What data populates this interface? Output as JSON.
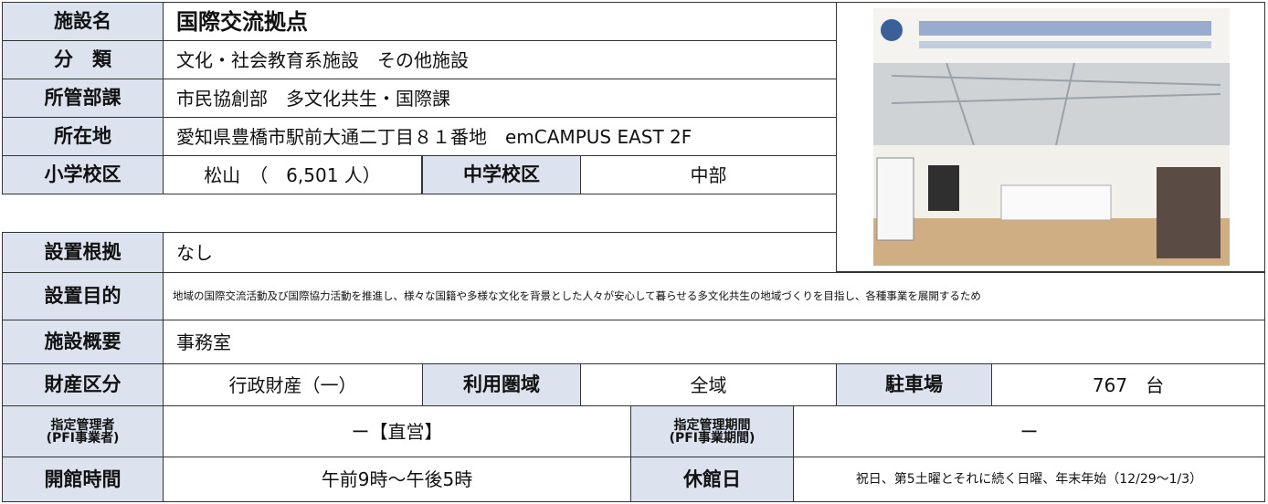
{
  "table": {
    "rows": [
      [
        "施設名",
        "国際交流拠点"
      ],
      [
        "分　類",
        "文化・社会教育系施設　その他施設"
      ],
      [
        "所管部課",
        "市民協創部　多文化共生・国際課"
      ],
      [
        "所在地",
        "愛知県豊橋市駅前大通二丁目８１番地　emCAMPUS EAST 2F"
      ],
      [
        "小学校区",
        "松山　（　6,501 人）",
        "中学校区",
        "中部"
      ],
      [
        "設置根拠",
        "なし"
      ],
      [
        "設置目的",
        "地域の国際交流活動及び国際協力活動を推進し、様々な国籍や多様な文化を背景とした人々が安心して暮らせる多文化共生の地域づくりを目指し、各種事業を展開するため"
      ],
      [
        "施設概要",
        "事務室"
      ],
      [
        "財産区分",
        "行政財産（一）",
        "利用圏域",
        "全域",
        "駐車場",
        "767　台"
      ],
      [
        "指定管理者\n(PFI事業者)",
        "ー【直営】",
        "指定管理期間\n(PFI事業期間)",
        "ー"
      ],
      [
        "開館時間",
        "午前9時～午後5時",
        "休館日",
        "祝日、第5土曜とそれに続く日曜、年末年始（12/29～1/3）"
      ]
    ]
  }
}
